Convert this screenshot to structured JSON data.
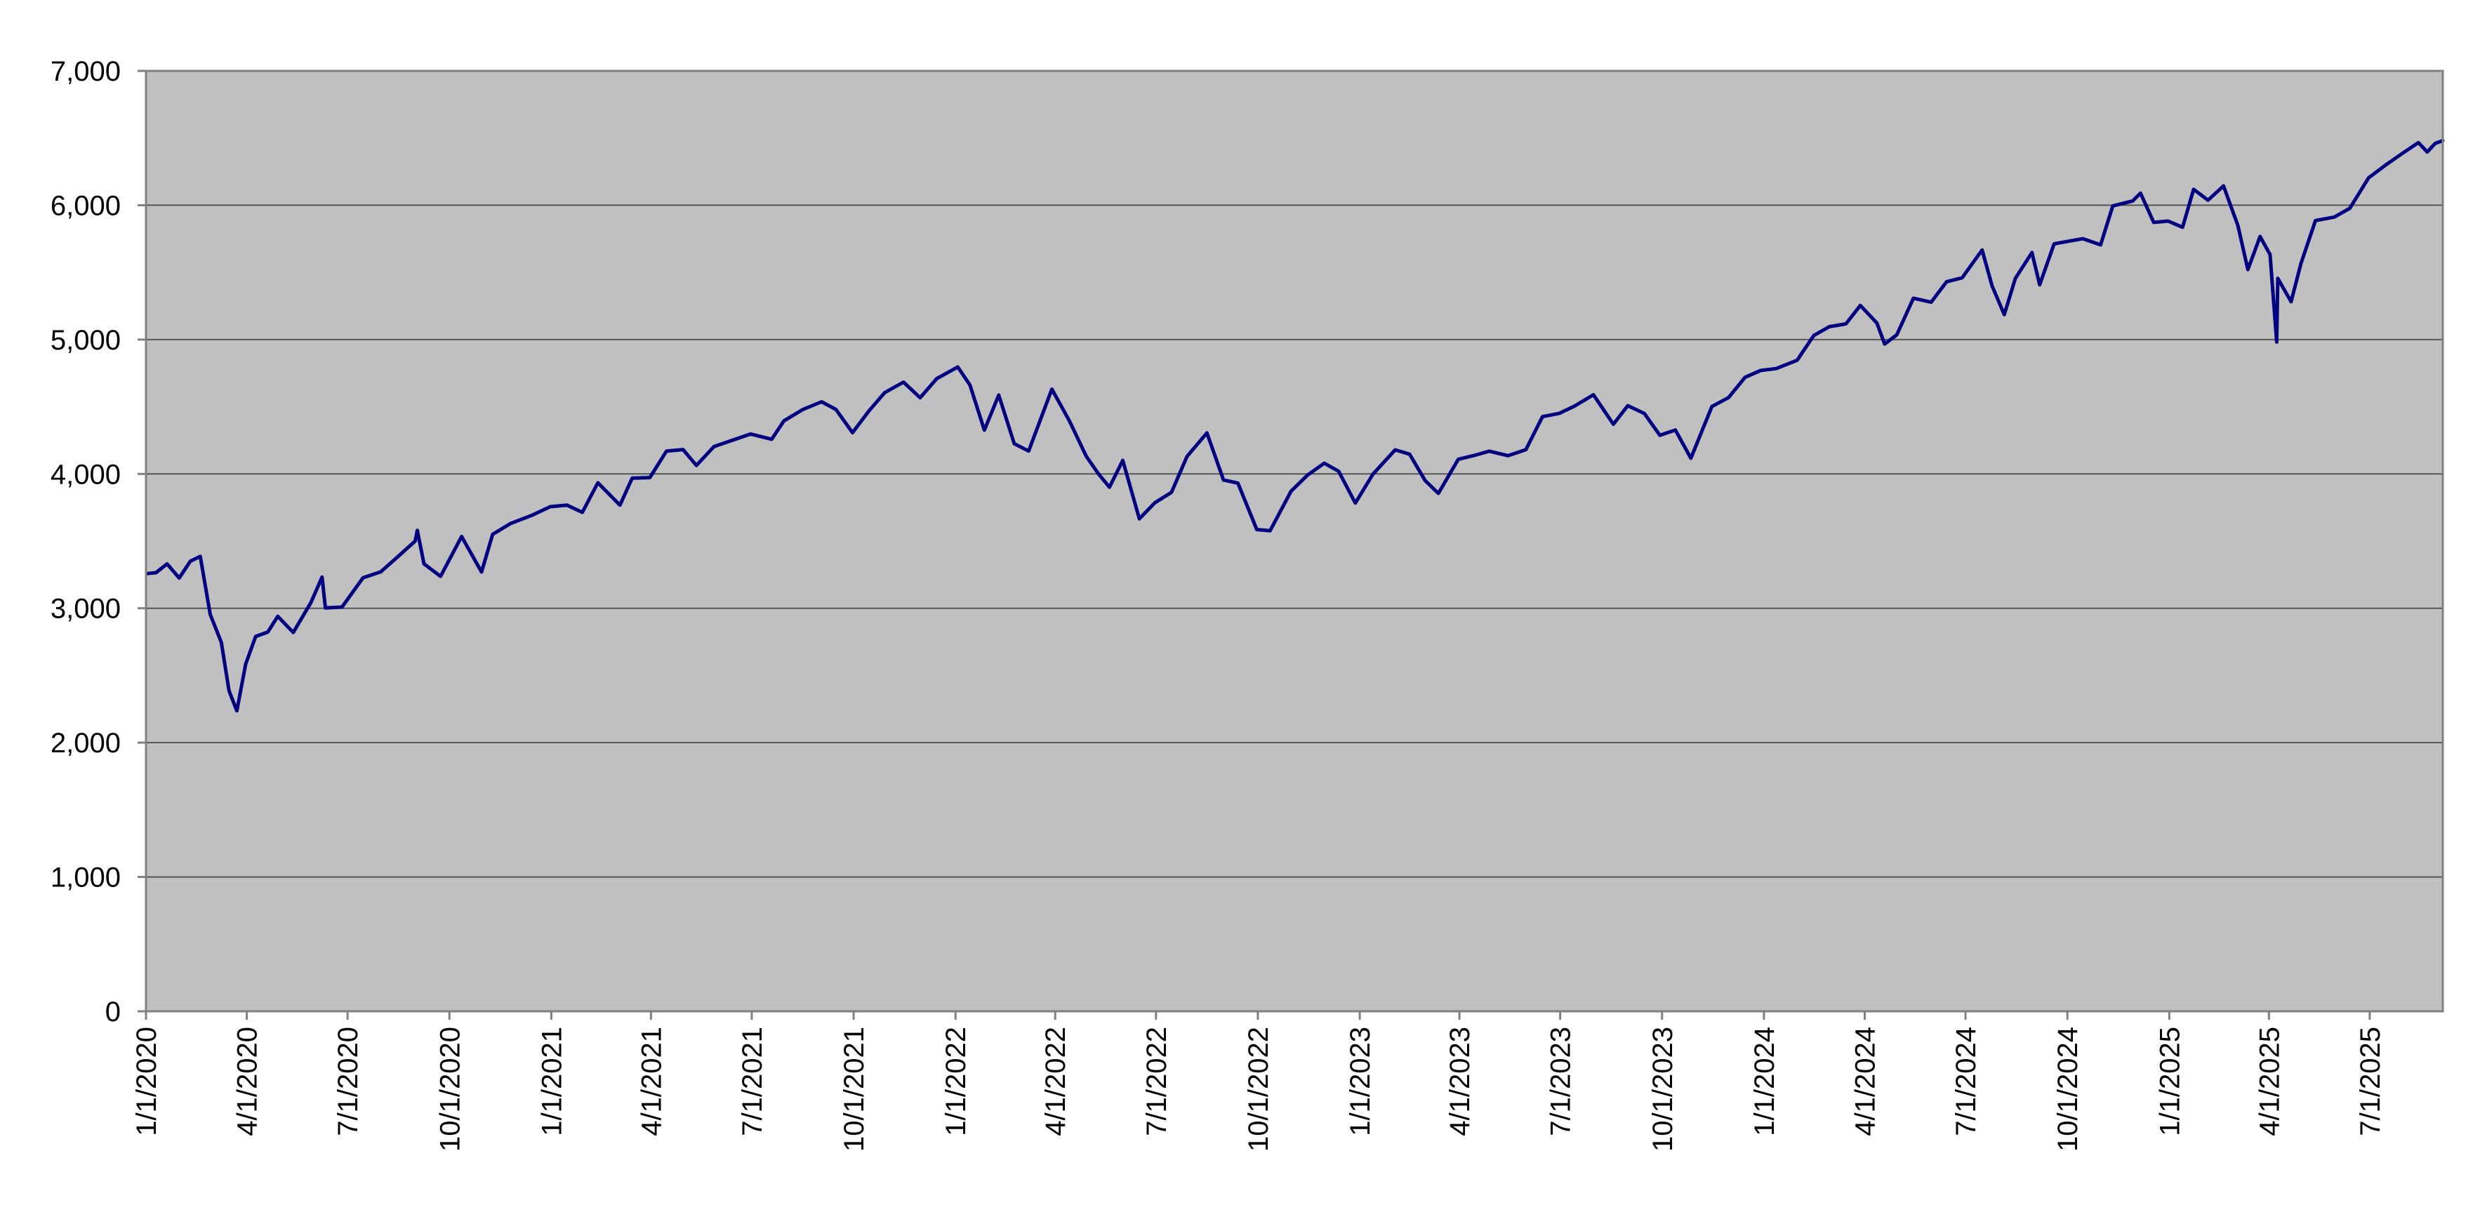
{
  "chart_data": {
    "type": "line",
    "title": "",
    "xlabel": "",
    "ylabel": "",
    "x_type": "date",
    "xlim": [
      "2020-01-01",
      "2025-09-05"
    ],
    "ylim": [
      0,
      7000
    ],
    "grid": "horizontal",
    "legend": "none",
    "colors": {
      "plot_background": "#c0c0c0",
      "line": "#000080",
      "gridline": "#555555",
      "axis": "#808080"
    },
    "y_ticks": [
      {
        "value": 0,
        "label": "0"
      },
      {
        "value": 1000,
        "label": "1,000"
      },
      {
        "value": 2000,
        "label": "2,000"
      },
      {
        "value": 3000,
        "label": "3,000"
      },
      {
        "value": 4000,
        "label": "4,000"
      },
      {
        "value": 5000,
        "label": "5,000"
      },
      {
        "value": 6000,
        "label": "6,000"
      },
      {
        "value": 7000,
        "label": "7,000"
      }
    ],
    "x_ticks": [
      {
        "date": "2020-01-01",
        "label": "1/1/2020"
      },
      {
        "date": "2020-04-01",
        "label": "4/1/2020"
      },
      {
        "date": "2020-07-01",
        "label": "7/1/2020"
      },
      {
        "date": "2020-10-01",
        "label": "10/1/2020"
      },
      {
        "date": "2021-01-01",
        "label": "1/1/2021"
      },
      {
        "date": "2021-04-01",
        "label": "4/1/2021"
      },
      {
        "date": "2021-07-01",
        "label": "7/1/2021"
      },
      {
        "date": "2021-10-01",
        "label": "10/1/2021"
      },
      {
        "date": "2022-01-01",
        "label": "1/1/2022"
      },
      {
        "date": "2022-04-01",
        "label": "4/1/2022"
      },
      {
        "date": "2022-07-01",
        "label": "7/1/2022"
      },
      {
        "date": "2022-10-01",
        "label": "10/1/2022"
      },
      {
        "date": "2023-01-01",
        "label": "1/1/2023"
      },
      {
        "date": "2023-04-01",
        "label": "4/1/2023"
      },
      {
        "date": "2023-07-01",
        "label": "7/1/2023"
      },
      {
        "date": "2023-10-01",
        "label": "10/1/2023"
      },
      {
        "date": "2024-01-01",
        "label": "1/1/2024"
      },
      {
        "date": "2024-04-01",
        "label": "4/1/2024"
      },
      {
        "date": "2024-07-01",
        "label": "7/1/2024"
      },
      {
        "date": "2024-10-01",
        "label": "10/1/2024"
      },
      {
        "date": "2025-01-01",
        "label": "1/1/2025"
      },
      {
        "date": "2025-04-01",
        "label": "4/1/2025"
      },
      {
        "date": "2025-07-01",
        "label": "7/1/2025"
      }
    ],
    "series": [
      {
        "x": [
          "2020-01-02",
          "2020-01-10",
          "2020-01-20",
          "2020-01-31",
          "2020-02-10",
          "2020-02-19",
          "2020-02-28",
          "2020-03-09",
          "2020-03-16",
          "2020-03-23",
          "2020-03-31",
          "2020-04-09",
          "2020-04-20",
          "2020-04-29",
          "2020-05-13",
          "2020-05-29",
          "2020-06-08",
          "2020-06-11",
          "2020-06-26",
          "2020-07-15",
          "2020-07-31",
          "2020-08-14",
          "2020-08-31",
          "2020-09-02",
          "2020-09-08",
          "2020-09-23",
          "2020-10-12",
          "2020-10-30",
          "2020-11-09",
          "2020-11-25",
          "2020-12-15",
          "2020-12-31",
          "2021-01-15",
          "2021-01-29",
          "2021-02-12",
          "2021-03-04",
          "2021-03-15",
          "2021-03-31",
          "2021-04-15",
          "2021-04-30",
          "2021-05-12",
          "2021-05-28",
          "2021-06-15",
          "2021-06-30",
          "2021-07-19",
          "2021-07-30",
          "2021-08-16",
          "2021-09-02",
          "2021-09-15",
          "2021-09-30",
          "2021-10-15",
          "2021-10-29",
          "2021-11-15",
          "2021-11-30",
          "2021-12-15",
          "2022-01-03",
          "2022-01-14",
          "2022-01-27",
          "2022-02-09",
          "2022-02-23",
          "2022-03-08",
          "2022-03-29",
          "2022-04-14",
          "2022-04-29",
          "2022-05-10",
          "2022-05-20",
          "2022-06-01",
          "2022-06-16",
          "2022-06-30",
          "2022-07-15",
          "2022-07-29",
          "2022-08-16",
          "2022-08-31",
          "2022-09-13",
          "2022-09-30",
          "2022-10-12",
          "2022-10-31",
          "2022-11-15",
          "2022-11-30",
          "2022-12-13",
          "2022-12-28",
          "2023-01-13",
          "2023-02-02",
          "2023-02-15",
          "2023-03-01",
          "2023-03-13",
          "2023-03-31",
          "2023-04-14",
          "2023-04-28",
          "2023-05-15",
          "2023-05-31",
          "2023-06-15",
          "2023-06-30",
          "2023-07-14",
          "2023-07-31",
          "2023-08-18",
          "2023-08-31",
          "2023-09-15",
          "2023-09-29",
          "2023-10-13",
          "2023-10-27",
          "2023-11-15",
          "2023-11-30",
          "2023-12-15",
          "2023-12-29",
          "2024-01-12",
          "2024-01-31",
          "2024-02-15",
          "2024-02-29",
          "2024-03-15",
          "2024-03-28",
          "2024-04-12",
          "2024-04-19",
          "2024-04-30",
          "2024-05-15",
          "2024-05-31",
          "2024-06-14",
          "2024-06-28",
          "2024-07-16",
          "2024-07-25",
          "2024-08-05",
          "2024-08-15",
          "2024-08-30",
          "2024-09-06",
          "2024-09-19",
          "2024-10-15",
          "2024-10-31",
          "2024-11-11",
          "2024-11-29",
          "2024-12-06",
          "2024-12-18",
          "2024-12-31",
          "2025-01-13",
          "2025-01-23",
          "2025-02-05",
          "2025-02-19",
          "2025-03-04",
          "2025-03-13",
          "2025-03-24",
          "2025-04-02",
          "2025-04-08",
          "2025-04-09",
          "2025-04-21",
          "2025-04-30",
          "2025-05-13",
          "2025-05-30",
          "2025-06-13",
          "2025-06-30",
          "2025-07-15",
          "2025-07-31",
          "2025-08-14",
          "2025-08-22",
          "2025-08-29",
          "2025-09-05"
        ],
        "values": [
          3258,
          3265,
          3330,
          3225,
          3350,
          3386,
          2954,
          2746,
          2386,
          2237,
          2585,
          2790,
          2823,
          2940,
          2820,
          3044,
          3232,
          3002,
          3009,
          3227,
          3271,
          3373,
          3500,
          3580,
          3331,
          3237,
          3534,
          3270,
          3550,
          3630,
          3694,
          3756,
          3768,
          3714,
          3934,
          3768,
          3968,
          3973,
          4170,
          4181,
          4063,
          4204,
          4255,
          4297,
          4258,
          4395,
          4479,
          4537,
          4480,
          4307,
          4471,
          4605,
          4683,
          4567,
          4709,
          4796,
          4662,
          4326,
          4587,
          4225,
          4170,
          4631,
          4392,
          4132,
          4001,
          3901,
          4101,
          3666,
          3785,
          3863,
          4130,
          4305,
          3955,
          3932,
          3586,
          3577,
          3872,
          3992,
          4080,
          4019,
          3783,
          3999,
          4179,
          4147,
          3951,
          3855,
          4109,
          4137,
          4169,
          4136,
          4180,
          4426,
          4450,
          4505,
          4589,
          4370,
          4508,
          4450,
          4288,
          4327,
          4117,
          4502,
          4568,
          4719,
          4770,
          4784,
          4846,
          5030,
          5096,
          5117,
          5254,
          5123,
          4967,
          5036,
          5308,
          5278,
          5431,
          5460,
          5667,
          5400,
          5186,
          5455,
          5648,
          5408,
          5713,
          5751,
          5705,
          5995,
          6032,
          6090,
          5872,
          5882,
          5836,
          6118,
          6037,
          6144,
          5849,
          5521,
          5767,
          5633,
          4982,
          5456,
          5282,
          5569,
          5886,
          5912,
          5977,
          6204,
          6297,
          6389,
          6466,
          6396,
          6460,
          6481
        ]
      }
    ]
  }
}
